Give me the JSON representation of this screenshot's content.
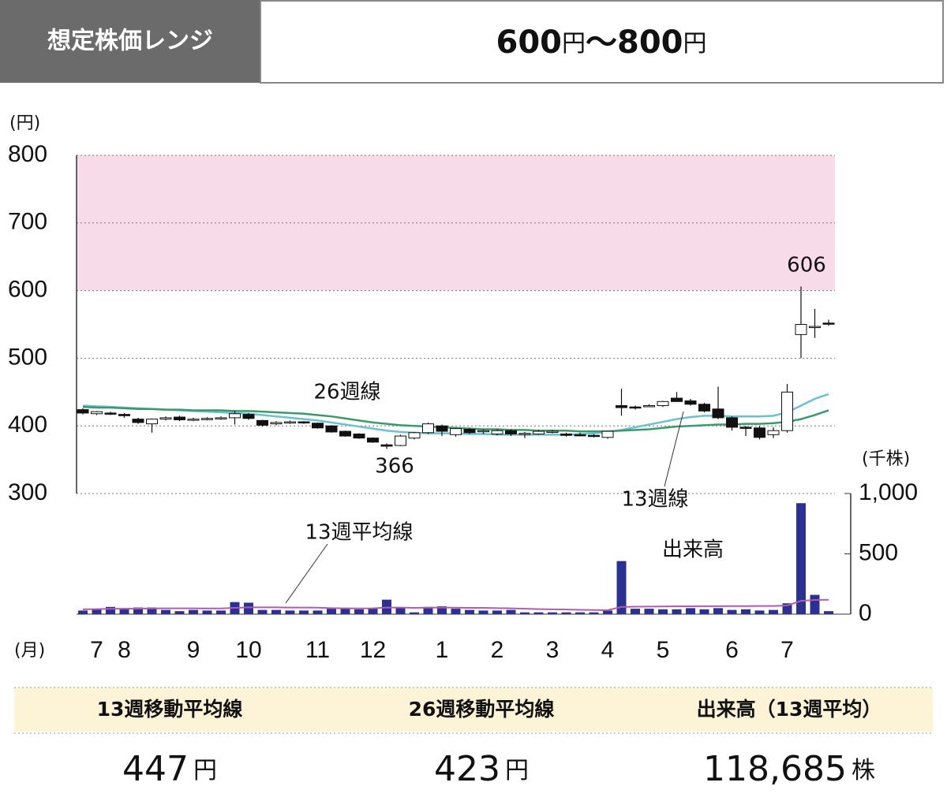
{
  "header": {
    "label": "想定株価レンジ",
    "low": "600",
    "unit": "円",
    "sep": "〜",
    "high": "800"
  },
  "chart_data": [
    {
      "type": "candlestick",
      "unit": "(円)",
      "x_unit": "(月)",
      "ylim": [
        300,
        800
      ],
      "yticks": [
        300,
        400,
        500,
        600,
        700,
        800
      ],
      "grid": true,
      "shade": {
        "range": [
          600,
          800
        ],
        "color": "#f7dbe8"
      },
      "annotations": [
        "606",
        "366"
      ],
      "categories": [
        null,
        "7",
        null,
        "8",
        null,
        null,
        null,
        null,
        "9",
        null,
        null,
        null,
        "10",
        null,
        null,
        null,
        null,
        "11",
        null,
        null,
        null,
        "12",
        null,
        null,
        null,
        null,
        "1",
        null,
        null,
        null,
        "2",
        null,
        null,
        null,
        "3",
        null,
        null,
        null,
        "4",
        null,
        null,
        null,
        "5",
        null,
        null,
        null,
        null,
        "6",
        null,
        null,
        null,
        "7",
        null,
        null,
        null
      ],
      "open": [
        424,
        418,
        419,
        417,
        410,
        403,
        410,
        413,
        409,
        410,
        411,
        412,
        417,
        408,
        403,
        405,
        406,
        404,
        400,
        392,
        388,
        382,
        372,
        371,
        382,
        390,
        400,
        387,
        395,
        392,
        388,
        393,
        388,
        388,
        391,
        388,
        387,
        386,
        383,
        430,
        428,
        429,
        430,
        441,
        437,
        432,
        425,
        412,
        398,
        397,
        387,
        393,
        535,
        546,
        552
      ],
      "high": [
        426,
        422,
        421,
        419,
        412,
        411,
        414,
        415,
        412,
        413,
        414,
        422,
        419,
        409,
        407,
        408,
        407,
        405,
        401,
        393,
        389,
        383,
        374,
        387,
        391,
        405,
        402,
        397,
        397,
        395,
        395,
        395,
        391,
        394,
        394,
        390,
        390,
        388,
        393,
        455,
        430,
        432,
        437,
        450,
        440,
        434,
        458,
        414,
        400,
        400,
        398,
        462,
        606,
        573,
        557
      ],
      "low": [
        417,
        416,
        416,
        412,
        403,
        390,
        408,
        407,
        407,
        408,
        409,
        402,
        409,
        399,
        401,
        403,
        403,
        396,
        390,
        384,
        381,
        375,
        366,
        370,
        380,
        388,
        385,
        384,
        388,
        388,
        386,
        385,
        382,
        387,
        389,
        384,
        385,
        383,
        381,
        415,
        424,
        428,
        428,
        438,
        430,
        420,
        410,
        393,
        385,
        380,
        382,
        390,
        500,
        530,
        548
      ],
      "close": [
        419,
        421,
        418,
        415,
        405,
        410,
        412,
        409,
        410,
        411,
        412,
        418,
        411,
        401,
        405,
        406,
        405,
        397,
        391,
        385,
        382,
        376,
        370,
        385,
        390,
        403,
        392,
        396,
        390,
        393,
        393,
        388,
        389,
        392,
        392,
        386,
        386,
        385,
        392,
        427,
        427,
        430,
        436,
        436,
        432,
        422,
        412,
        398,
        397,
        383,
        393,
        450,
        550,
        547,
        551
      ],
      "series": [
        {
          "name": "13週線",
          "color": "#6cc0d4",
          "values": [
            430,
            429,
            428,
            427,
            426,
            425,
            424,
            423,
            422,
            421,
            420,
            419,
            418,
            416,
            414,
            412,
            410,
            408,
            405,
            402,
            399,
            396,
            393,
            391,
            390,
            389,
            389,
            389,
            388,
            388,
            387,
            387,
            387,
            387,
            387,
            387,
            388,
            389,
            391,
            394,
            398,
            402,
            406,
            410,
            413,
            415,
            415,
            414,
            414,
            414,
            415,
            420,
            430,
            440,
            447
          ]
        },
        {
          "name": "26週線",
          "color": "#3a9a6a",
          "values": [
            428,
            427,
            427,
            426,
            425,
            425,
            424,
            424,
            423,
            423,
            423,
            422,
            422,
            421,
            420,
            419,
            418,
            416,
            414,
            411,
            408,
            405,
            403,
            401,
            400,
            399,
            398,
            397,
            396,
            395,
            395,
            394,
            394,
            393,
            393,
            393,
            392,
            392,
            392,
            393,
            394,
            395,
            397,
            399,
            400,
            401,
            402,
            402,
            403,
            403,
            404,
            406,
            410,
            416,
            423
          ]
        }
      ]
    },
    {
      "type": "bar",
      "unit": "(千株)",
      "ylim": [
        0,
        1000
      ],
      "yticks": [
        0,
        500,
        {
          "value": 1000,
          "label": "1,000"
        }
      ],
      "series": [
        {
          "name": "出来高",
          "color": "#2b3190",
          "values": [
            30,
            40,
            60,
            45,
            55,
            55,
            35,
            25,
            35,
            30,
            30,
            100,
            95,
            35,
            35,
            30,
            30,
            30,
            45,
            45,
            40,
            50,
            120,
            55,
            15,
            60,
            65,
            45,
            35,
            30,
            30,
            35,
            15,
            15,
            15,
            15,
            15,
            15,
            30,
            440,
            45,
            45,
            40,
            40,
            50,
            40,
            50,
            35,
            40,
            30,
            35,
            90,
            920,
            160,
            25
          ]
        },
        {
          "name": "13週平均線",
          "color": "#b05cb0",
          "values": [
            40,
            42,
            44,
            45,
            46,
            47,
            48,
            48,
            48,
            47,
            47,
            52,
            56,
            56,
            56,
            55,
            55,
            54,
            50,
            48,
            47,
            48,
            55,
            55,
            52,
            54,
            55,
            54,
            52,
            52,
            50,
            48,
            45,
            42,
            40,
            38,
            36,
            34,
            33,
            60,
            62,
            63,
            64,
            65,
            65,
            66,
            66,
            67,
            67,
            68,
            68,
            72,
            110,
            118,
            119
          ]
        }
      ]
    }
  ],
  "summary": [
    {
      "title": "13週移動平均線",
      "value": "447",
      "unit": "円"
    },
    {
      "title": "26週移動平均線",
      "value": "423",
      "unit": "円"
    },
    {
      "title": "出来高（13週平均）",
      "value": "118,685",
      "unit": "株"
    }
  ]
}
